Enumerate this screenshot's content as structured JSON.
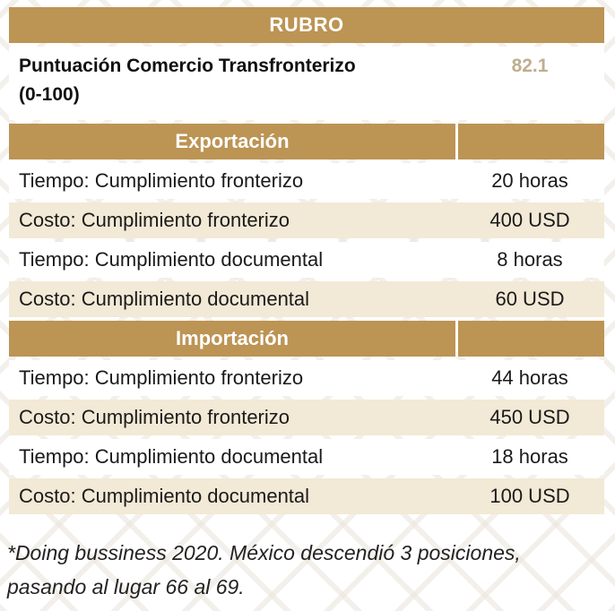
{
  "header": {
    "title": "RUBRO"
  },
  "score": {
    "label_line1": "Puntuación Comercio Transfronterizo",
    "label_line2": "(0-100)",
    "value": "82.1"
  },
  "sections": [
    {
      "title": "Exportación",
      "rows": [
        {
          "label": "Tiempo: Cumplimiento fronterizo",
          "value": "20 horas"
        },
        {
          "label": "Costo: Cumplimiento fronterizo",
          "value": "400 USD"
        },
        {
          "label": "Tiempo: Cumplimiento documental",
          "value": "8 horas"
        },
        {
          "label": "Costo: Cumplimiento documental",
          "value": "60 USD"
        }
      ]
    },
    {
      "title": "Importación",
      "rows": [
        {
          "label": "Tiempo: Cumplimiento fronterizo",
          "value": "44 horas"
        },
        {
          "label": "Costo: Cumplimiento fronterizo",
          "value": "450 USD"
        },
        {
          "label": "Tiempo: Cumplimiento documental",
          "value": "18 horas"
        },
        {
          "label": "Costo: Cumplimiento documental",
          "value": "100 USD"
        }
      ]
    }
  ],
  "footnote": {
    "line1": "*Doing bussiness 2020. México descendió 3 posiciones,",
    "line2": "pasando al lugar 66 al 69."
  },
  "colors": {
    "gold": "#bc9454",
    "cream": "#f2e9d6",
    "score_value": "#bfae8f"
  }
}
